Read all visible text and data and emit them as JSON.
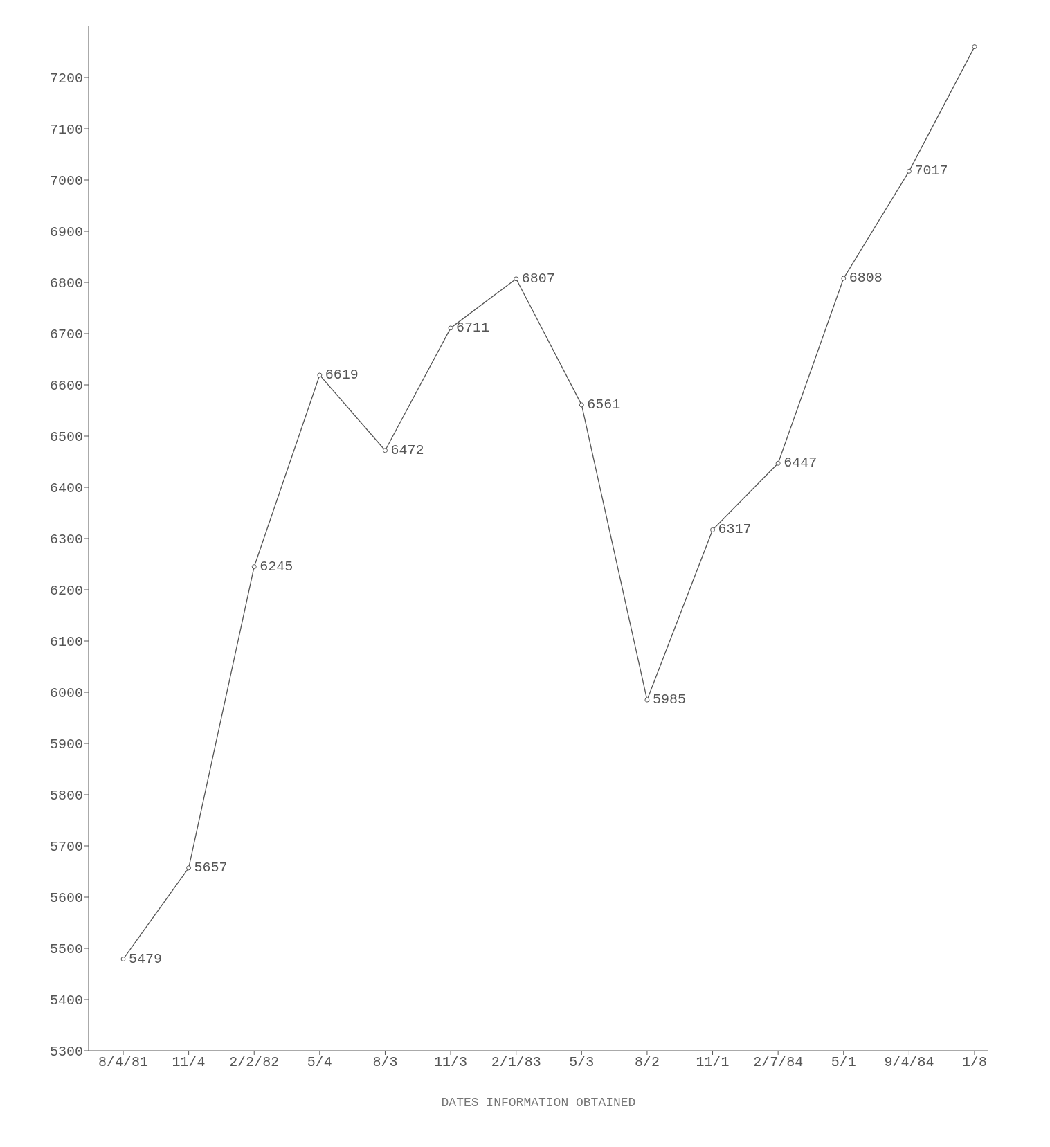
{
  "chart_data": {
    "type": "line",
    "xlabel": "DATES INFORMATION OBTAINED",
    "categories": [
      "8/4/81",
      "11/4",
      "2/2/82",
      "5/4",
      "8/3",
      "11/3",
      "2/1/83",
      "5/3",
      "8/2",
      "11/1",
      "2/7/84",
      "5/1",
      "9/4/84",
      "1/8"
    ],
    "series": [
      {
        "color": "#555555",
        "values": [
          5479,
          5657,
          6245,
          6619,
          6472,
          6711,
          6807,
          6561,
          5985,
          6317,
          6447,
          6808,
          7017,
          7260
        ],
        "value_labels": [
          "5479",
          "5657",
          "6245",
          "6619",
          "6472",
          "6711",
          "6807",
          "6561",
          "5985",
          "6317",
          "6447",
          "6808",
          "7017",
          null
        ]
      }
    ],
    "ylim": [
      5300,
      7300
    ],
    "yticks": [
      5300,
      5400,
      5500,
      5600,
      5700,
      5800,
      5900,
      6000,
      6100,
      6200,
      6300,
      6400,
      6500,
      6600,
      6700,
      6800,
      6900,
      7000,
      7100,
      7200
    ],
    "grid": false,
    "legend": false,
    "marker": "circle",
    "line_style": "solid"
  }
}
